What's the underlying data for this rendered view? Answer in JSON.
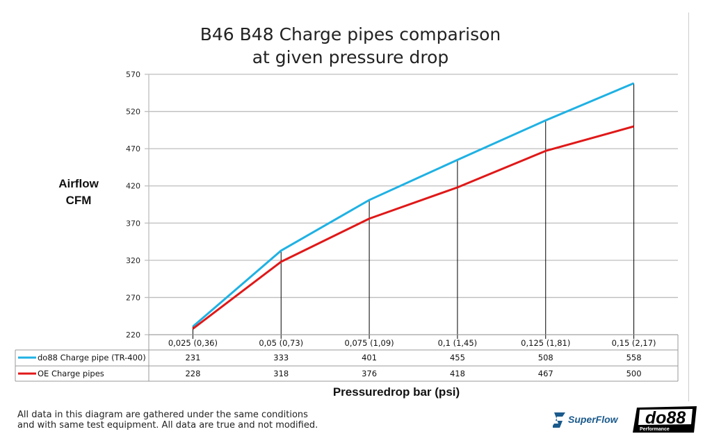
{
  "chart_data": {
    "type": "line",
    "title": [
      "B46 B48 Charge pipes comparison",
      "at given pressure drop"
    ],
    "ylabel": [
      "Airflow",
      "CFM"
    ],
    "xlabel": "Pressuredrop bar (psi)",
    "ylim": [
      220,
      570
    ],
    "yticks": [
      220,
      270,
      320,
      370,
      420,
      470,
      520,
      570
    ],
    "grid": true,
    "legend": "data-table",
    "categories": [
      "0,025 (0,36)",
      "0,05 (0,73)",
      "0,075 (1,09)",
      "0,1 (1,45)",
      "0,125 (1,81)",
      "0,15 (2,17)"
    ],
    "series": [
      {
        "name": "do88 Charge pipe (TR-400)",
        "color": "#1fb1e3",
        "values": [
          231,
          333,
          401,
          455,
          508,
          558
        ]
      },
      {
        "name": "OE Charge pipes",
        "color": "#e01818",
        "values": [
          228,
          318,
          376,
          418,
          467,
          500
        ]
      }
    ]
  },
  "note": [
    "All data in this diagram are gathered under the same conditions",
    "and with same test equipment. All data are true and not modified."
  ],
  "logos": {
    "superflow": "SuperFlow",
    "do88": "do88",
    "do88_sub": "Performance"
  }
}
